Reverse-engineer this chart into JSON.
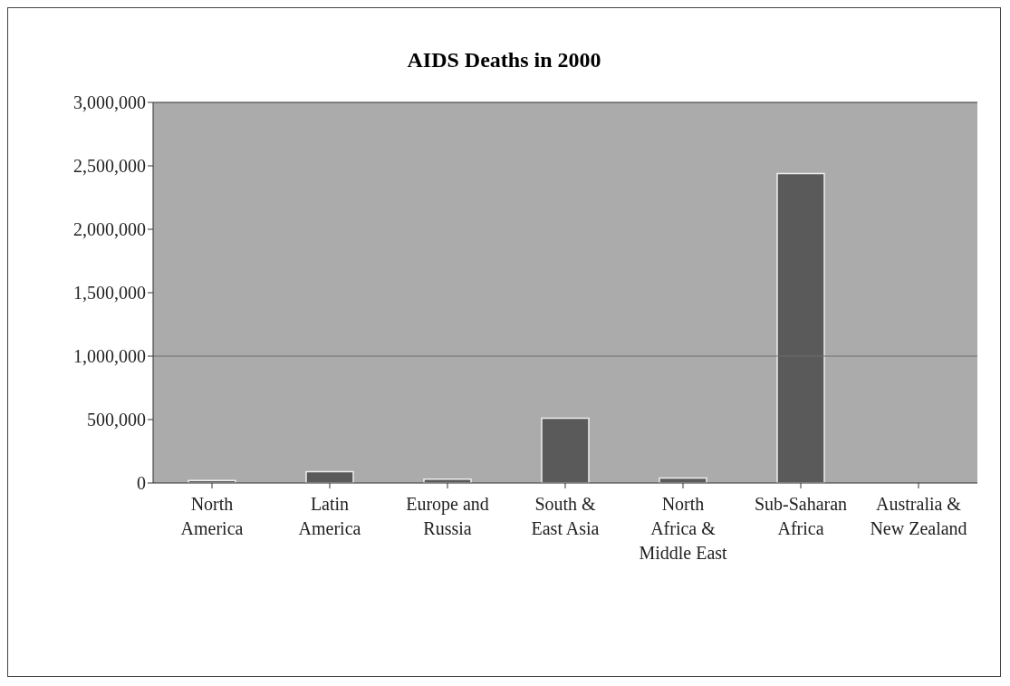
{
  "chart_data": {
    "type": "bar",
    "title": "AIDS Deaths in 2000",
    "categories": [
      "North America",
      "Latin America",
      "Europe and Russia",
      "South & East Asia",
      "North Africa & Middle East",
      "Sub-Saharan Africa",
      "Australia & New Zealand"
    ],
    "values": [
      20000,
      90000,
      30000,
      510000,
      40000,
      2440000,
      0
    ],
    "color": "#5a5a5a",
    "ylim": [
      0,
      3000000
    ],
    "yticks": [
      0,
      {
        "value": 500000,
        "label": "500,000"
      },
      {
        "value": 1000000,
        "label": "1,000,000"
      },
      {
        "value": 1500000,
        "label": "1,500,000"
      },
      {
        "value": 2000000,
        "label": "2,000,000"
      },
      {
        "value": 2500000,
        "label": "2,500,000"
      },
      {
        "value": 3000000,
        "label": "3,000,000"
      }
    ],
    "grid": false,
    "ref_lines": [
      {
        "axis": "y",
        "value": 1000000,
        "color": "#6e6e6e"
      }
    ]
  }
}
